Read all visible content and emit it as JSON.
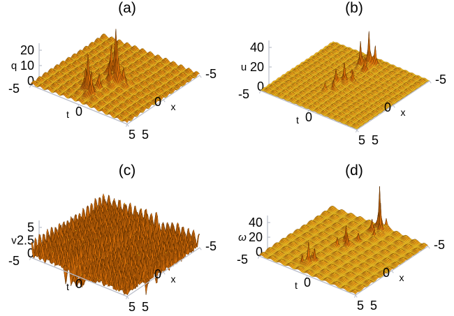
{
  "figure": {
    "background": "#FFFFFF",
    "colors": {
      "surface_top": "#FFD51E",
      "surface_side": "#D66E0A",
      "surface_dark": "#5E3406",
      "mesh": "#5A2D00",
      "axis": "#B9BDC9",
      "text": "#000000"
    }
  },
  "chart_data": [
    {
      "panel_label": "(a)",
      "type": "surface3d",
      "title": "(a)",
      "z_axis": {
        "label": "q",
        "italic": false,
        "ticks": [
          {
            "v": 0,
            "label": "0"
          },
          {
            "v": 10,
            "label": "10"
          },
          {
            "v": 20,
            "label": "20"
          }
        ]
      },
      "t_axis": {
        "label": "t",
        "range": [
          -5,
          5
        ],
        "ticks": [
          {
            "v": -5,
            "label": "-5"
          },
          {
            "v": 0,
            "label": "0"
          },
          {
            "v": 5,
            "label": "5"
          }
        ]
      },
      "x_axis": {
        "label": "x",
        "range": [
          -5,
          5
        ],
        "ticks": [
          {
            "v": -5,
            "label": "-5"
          },
          {
            "v": 0,
            "label": "0"
          },
          {
            "v": 5,
            "label": "5"
          }
        ]
      },
      "description": "Doubly periodic lattice background with two clusters of sharp rogue-wave peaks near the center of the (x,t) plane; peak amplitude q up to about 32.",
      "render": {
        "view": {
          "F": [
            182,
            178
          ],
          "L": [
            44,
            122
          ],
          "R": [
            286,
            108
          ],
          "zscale": 2.2,
          "z_axis_dx": 12,
          "z_axis_dy": -6
        },
        "surface": {
          "grid": 80,
          "base": 0.4,
          "bumps": {
            "amp": 2.6,
            "period": 0.8
          },
          "waves": {
            "amp": 0.35,
            "kx": 0.65,
            "kt": 0.5
          },
          "noise": 0,
          "peaks": [
            [
              0.25,
              0.25,
              32,
              0.15
            ],
            [
              0.75,
              0.75,
              24,
              0.14
            ],
            [
              -0.125,
              -0.5,
              18,
              0.13
            ],
            [
              1.25,
              0.375,
              14,
              0.12
            ],
            [
              0.5,
              1.25,
              10,
              0.12
            ],
            [
              3.25,
              -0.375,
              24,
              0.14
            ],
            [
              3.625,
              0.25,
              16,
              0.13
            ],
            [
              2.75,
              -1.0,
              12,
              0.12
            ],
            [
              2.375,
              0.125,
              8,
              0.11
            ]
          ]
        }
      }
    },
    {
      "panel_label": "(b)",
      "type": "surface3d",
      "title": "(b)",
      "z_axis": {
        "label": "u",
        "italic": false,
        "ticks": [
          {
            "v": 0,
            "label": "0"
          },
          {
            "v": 20,
            "label": "20"
          },
          {
            "v": 40,
            "label": "40"
          }
        ]
      },
      "t_axis": {
        "label": "t",
        "range": [
          -5,
          5
        ],
        "ticks": [
          {
            "v": -5,
            "label": "-5"
          },
          {
            "v": 0,
            "label": "0"
          },
          {
            "v": 5,
            "label": "5"
          }
        ]
      },
      "x_axis": {
        "label": "x",
        "range": [
          -5,
          5
        ],
        "ticks": [
          {
            "v": -5,
            "label": "-5"
          },
          {
            "v": 0,
            "label": "0"
          },
          {
            "v": 5,
            "label": "5"
          }
        ]
      },
      "description": "Flat doubly periodic lattice with a band of thin needle-like peaks along t of roughly -0.3, u up to about 35.",
      "render": {
        "view": {
          "F": [
            186,
            186
          ],
          "L": [
            48,
            130
          ],
          "R": [
            290,
            116
          ],
          "zscale": 1.4,
          "z_axis_dx": 12,
          "z_axis_dy": -6
        },
        "surface": {
          "grid": 80,
          "base": 0.3,
          "bumps": {
            "amp": 2.6,
            "period": 0.65
          },
          "waves": {
            "amp": 0.22,
            "kx": 0.7,
            "kt": 0.55
          },
          "noise": 0,
          "peaks": [
            [
              -3.625,
              -0.25,
              35,
              0.11
            ],
            [
              -3.125,
              -0.75,
              24,
              0.1
            ],
            [
              -4.0,
              0.125,
              18,
              0.1
            ],
            [
              -2.75,
              0.0,
              13,
              0.1
            ],
            [
              -0.25,
              -0.25,
              20,
              0.11
            ],
            [
              0.25,
              -0.75,
              14,
              0.1
            ],
            [
              -0.75,
              0.25,
              11,
              0.1
            ],
            [
              1.25,
              -0.25,
              9,
              0.1
            ],
            [
              1.75,
              -0.75,
              7,
              0.1
            ],
            [
              -1.625,
              -0.5,
              6,
              0.1
            ]
          ]
        }
      }
    },
    {
      "panel_label": "(c)",
      "type": "surface3d",
      "title": "(c)",
      "z_axis": {
        "label": "v",
        "italic": false,
        "ticks": [
          {
            "v": 0,
            "label": "0"
          },
          {
            "v": 2.5,
            "label": "2.5"
          },
          {
            "v": 5,
            "label": "5"
          }
        ]
      },
      "t_axis": {
        "label": "t",
        "range": [
          -5,
          5
        ],
        "ticks": [
          {
            "v": -5,
            "label": "-5"
          },
          {
            "v": 0,
            "label": "0"
          },
          {
            "v": 5,
            "label": "5"
          }
        ]
      },
      "x_axis": {
        "label": "x",
        "range": [
          -5,
          5
        ],
        "ticks": [
          {
            "v": -5,
            "label": "-5"
          },
          {
            "v": 0,
            "label": "0"
          },
          {
            "v": 5,
            "label": "5"
          }
        ]
      },
      "description": "Dense high-frequency rough lattice oscillating between 0 and 5 with a winding trench through the middle and scattered deep downward shards.",
      "render": {
        "view": {
          "F": [
            182,
            198
          ],
          "L": [
            44,
            142
          ],
          "R": [
            286,
            128
          ],
          "zscale": 7.4,
          "z_axis_dx": 12,
          "z_axis_dy": -6
        },
        "surface": {
          "grid": 96,
          "base": 0.3,
          "bumps": {
            "amp": 3.0,
            "period": 0.55
          },
          "waves": {
            "amp": 0.25,
            "kx": 0.6,
            "kt": 0.5
          },
          "noise": 0.5,
          "trench": {
            "t0": 0.3,
            "slope": -0.12,
            "curve_amp": 0.5,
            "curve_k": 0.8,
            "depth": 3.2,
            "width": 0.28
          },
          "peaks": [
            [
              -3.4,
              2.1,
              -5,
              0.11
            ],
            [
              -0.9,
              3.6,
              -6,
              0.11
            ],
            [
              2.1,
              2.6,
              -5,
              0.11
            ],
            [
              4.0,
              -2.1,
              -6,
              0.11
            ],
            [
              0.6,
              -3.7,
              -5,
              0.11
            ],
            [
              -4.1,
              -1.4,
              -5,
              0.11
            ],
            [
              1.6,
              4.4,
              -7,
              0.11
            ],
            [
              -1.9,
              -4.4,
              -6,
              0.11
            ],
            [
              3.3,
              0.9,
              -4,
              0.11
            ],
            [
              -0.4,
              0.4,
              -4,
              0.11
            ],
            [
              -2.6,
              1.6,
              3,
              0.11
            ],
            [
              2.6,
              -1.4,
              3,
              0.11
            ],
            [
              0.1,
              1.1,
              3,
              0.11
            ]
          ]
        }
      }
    },
    {
      "panel_label": "(d)",
      "type": "surface3d",
      "title": "(d)",
      "z_axis": {
        "label": "ω",
        "italic": true,
        "ticks": [
          {
            "v": 0,
            "label": "0"
          },
          {
            "v": 20,
            "label": "20"
          },
          {
            "v": 40,
            "label": "40"
          }
        ]
      },
      "t_axis": {
        "label": "t",
        "range": [
          -5,
          5
        ],
        "ticks": [
          {
            "v": -5,
            "label": "-5"
          },
          {
            "v": 0,
            "label": "0"
          },
          {
            "v": 5,
            "label": "5"
          }
        ]
      },
      "x_axis": {
        "label": "x",
        "range": [
          -5,
          5
        ],
        "ticks": [
          {
            "v": -5,
            "label": "-5"
          },
          {
            "v": 0,
            "label": "0"
          },
          {
            "v": 5,
            "label": "5"
          }
        ]
      },
      "description": "Smooth doubly periodic lattice with three clusters of very thin needle spikes along a diagonal band; the two tallest needles exceed the 40 tick.",
      "render": {
        "view": {
          "F": [
            184,
            196
          ],
          "L": [
            46,
            140
          ],
          "R": [
            288,
            126
          ],
          "zscale": 1.05,
          "z_axis_dx": 12,
          "z_axis_dy": -6
        },
        "surface": {
          "grid": 80,
          "base": 0.4,
          "bumps": {
            "amp": 4.5,
            "period": 0.95
          },
          "waves": {
            "amp": 0.6,
            "kx": 0.6,
            "kt": 0.5
          },
          "noise": 0,
          "peaks": [
            [
              -4.625,
              0.25,
              55,
              0.09
            ],
            [
              -4.25,
              0.625,
              38,
              0.08
            ],
            [
              -3.75,
              0.125,
              14,
              0.09
            ],
            [
              -4.875,
              0.75,
              11,
              0.08
            ],
            [
              -3.375,
              0.625,
              9,
              0.08
            ],
            [
              -1.0,
              -0.5,
              24,
              0.09
            ],
            [
              -0.625,
              -0.125,
              18,
              0.09
            ],
            [
              -1.5,
              -0.875,
              14,
              0.09
            ],
            [
              -0.125,
              -0.75,
              10,
              0.08
            ],
            [
              -1.875,
              0.125,
              8,
              0.08
            ],
            [
              3.5,
              -1.0,
              27,
              0.08
            ],
            [
              3.0,
              -0.75,
              15,
              0.08
            ],
            [
              3.875,
              -1.375,
              11,
              0.08
            ],
            [
              2.625,
              -1.25,
              7,
              0.08
            ]
          ]
        }
      }
    }
  ]
}
